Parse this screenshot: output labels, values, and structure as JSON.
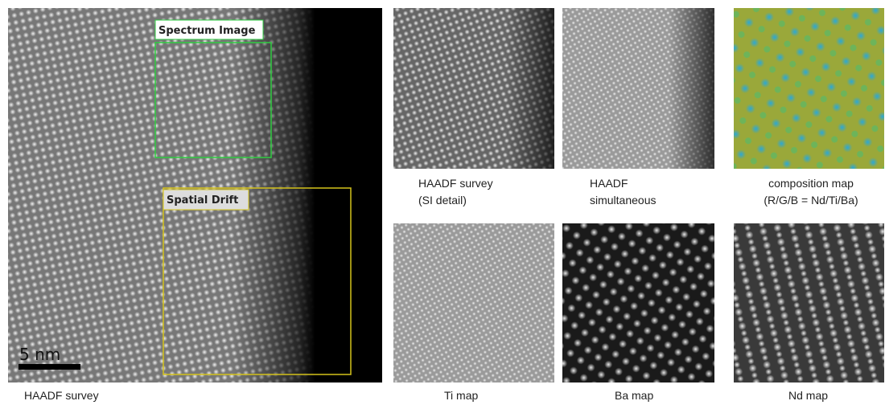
{
  "survey": {
    "caption": "HAADF survey",
    "roi_labels": [
      "Spectrum Image",
      "Spatial Drift"
    ],
    "scale_bar": "5 nm"
  },
  "panels": [
    {
      "caption_lines": [
        "HAADF survey",
        "(SI detail)"
      ]
    },
    {
      "caption_lines": [
        "HAADF",
        "simultaneous"
      ]
    },
    {
      "caption_lines": [
        "composition map",
        "(R/G/B = Nd/Ti/Ba)"
      ]
    },
    {
      "caption_lines": [
        "Ti map"
      ]
    },
    {
      "caption_lines": [
        "Ba map"
      ]
    },
    {
      "caption_lines": [
        "Nd map"
      ]
    }
  ]
}
